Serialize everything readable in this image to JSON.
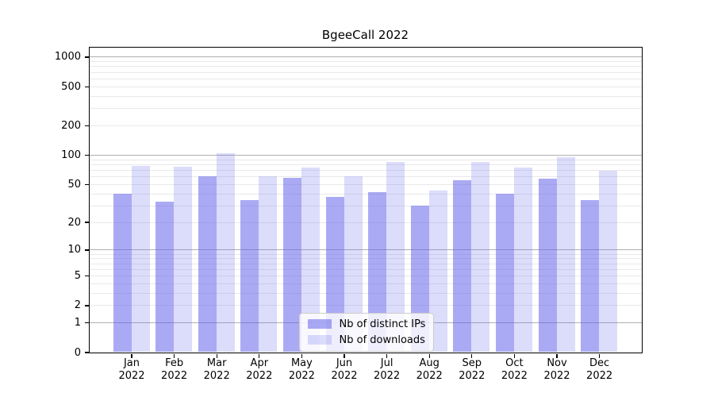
{
  "chart_data": {
    "type": "bar",
    "title": "BgeeCall 2022",
    "year_label": "2022",
    "categories": [
      "Jan",
      "Feb",
      "Mar",
      "Apr",
      "May",
      "Jun",
      "Jul",
      "Aug",
      "Sep",
      "Oct",
      "Nov",
      "Dec"
    ],
    "series": [
      {
        "name": "Nb of distinct IPs",
        "color": "rgba(95,95,235,0.53)",
        "values": [
          40,
          33,
          60,
          34,
          58,
          37,
          41,
          30,
          55,
          40,
          57,
          34
        ]
      },
      {
        "name": "Nb of downloads",
        "color": "rgba(95,95,235,0.22)",
        "values": [
          77,
          75,
          104,
          60,
          74,
          60,
          85,
          43,
          84,
          74,
          94,
          69
        ]
      }
    ],
    "yscale": "log1p",
    "ylim": [
      0,
      1250
    ],
    "yticks": [
      0,
      1,
      2,
      5,
      10,
      20,
      50,
      100,
      200,
      500,
      1000
    ],
    "grid": true,
    "legend_position": "lower center",
    "colors": {
      "bar_base": "#5f5feb",
      "major_grid": "#b0b0b0",
      "minor_grid": "#e9e9e9",
      "axis": "#000000",
      "background": "#ffffff"
    }
  }
}
